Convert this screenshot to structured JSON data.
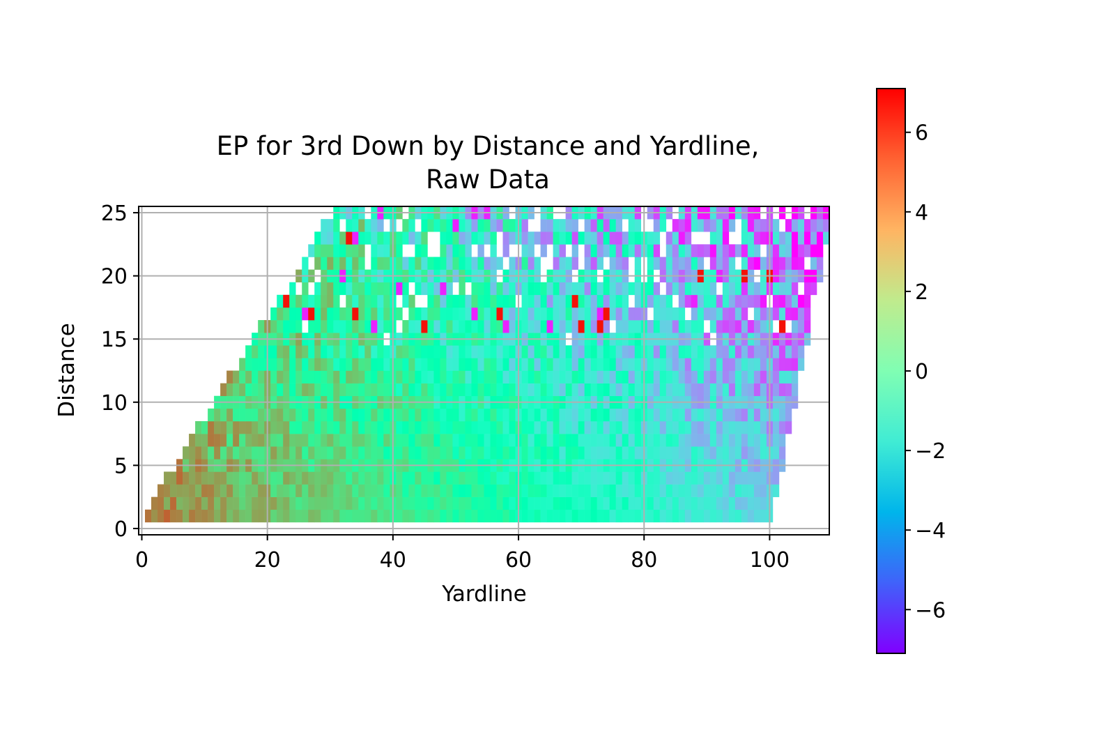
{
  "chart_data": {
    "type": "heatmap",
    "title": "EP for 3rd Down by Distance and Yardline,",
    "subtitle": "Raw Data",
    "xlabel": "Yardline",
    "ylabel": "Distance",
    "xlim": [
      -0.5,
      109.5
    ],
    "ylim": [
      -0.5,
      25.5
    ],
    "xticks": [
      "0",
      "20",
      "40",
      "60",
      "80",
      "100"
    ],
    "yticks": [
      "0",
      "5",
      "10",
      "15",
      "20",
      "25"
    ],
    "xtick_values": [
      0,
      20,
      40,
      60,
      80,
      100
    ],
    "ytick_values": [
      0,
      5,
      10,
      15,
      20,
      25
    ],
    "grid": true,
    "colormap": "rainbow",
    "colorbar": {
      "vmin": -7.1,
      "vmax": 7.1,
      "ticks": [
        "6",
        "4",
        "2",
        "0",
        "−2",
        "−4",
        "−6"
      ],
      "tick_values": [
        6,
        4,
        2,
        0,
        -2,
        -4,
        -6
      ]
    },
    "cells": {
      "x_range": [
        1,
        109
      ],
      "y_range": [
        1,
        25
      ],
      "valid_region": "yardline >= 1.25 * distance - 1 and yardline <= 100 + 0.4 * distance",
      "ep_model": "EP ≈ 4.9 - 0.075 * yardline - 0.09 * distance, with cell-level noise growing with distance",
      "note": "Per-cell values vary; general trend: high EP (~5) near yardline 0, low EP (~ -3) near yardline 100"
    }
  }
}
